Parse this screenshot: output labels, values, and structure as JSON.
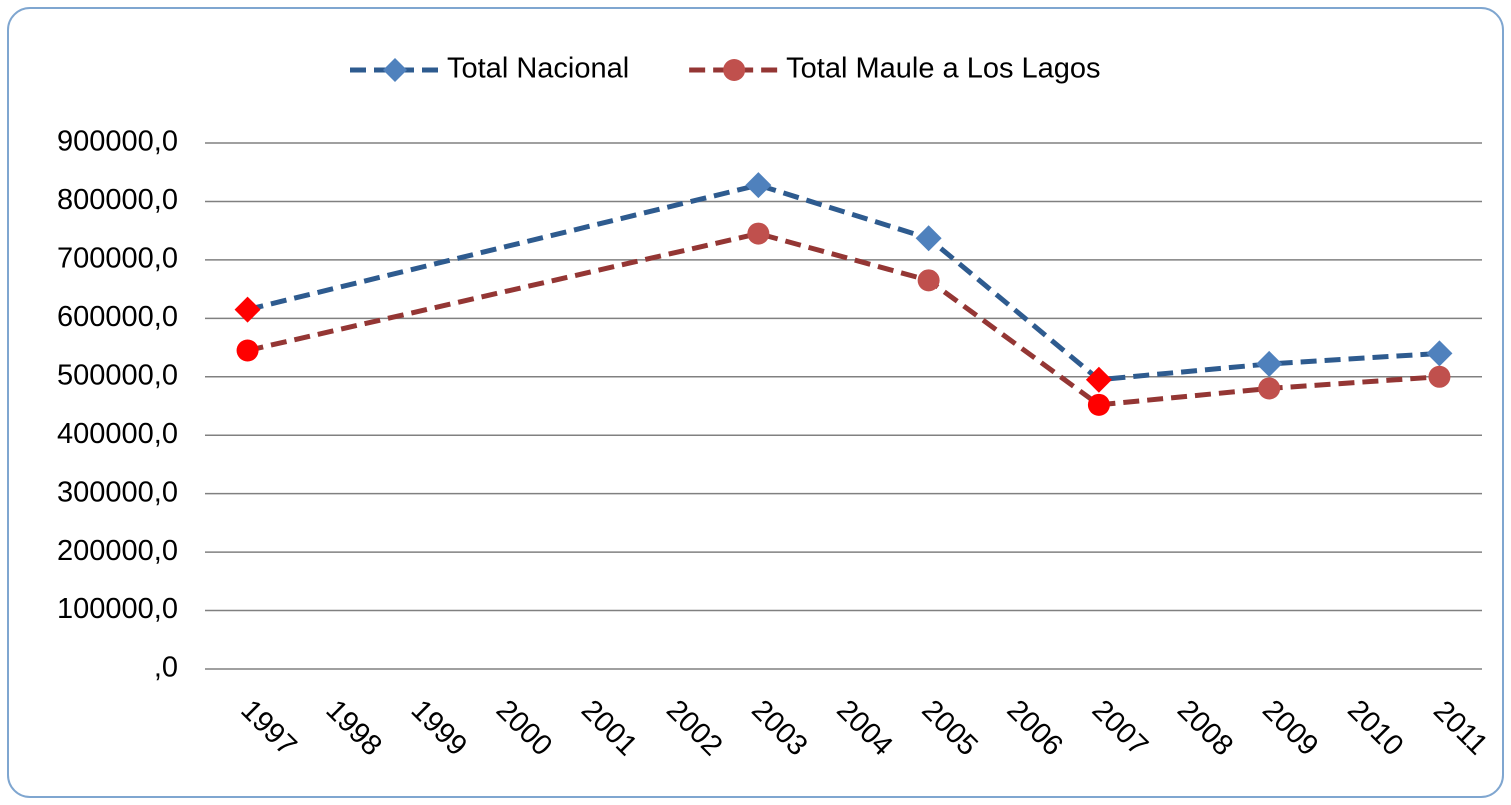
{
  "chart_data": {
    "type": "line",
    "x": [
      1997,
      2003,
      2005,
      2007,
      2009,
      2011
    ],
    "xlim": [
      1996.5,
      2011.5
    ],
    "xticks": [
      1997,
      1998,
      1999,
      2000,
      2001,
      2002,
      2003,
      2004,
      2005,
      2006,
      2007,
      2008,
      2009,
      2010,
      2011
    ],
    "series": [
      {
        "name": "Total Nacional",
        "color": "#4f81bd",
        "line_color": "#2e5b8f",
        "marker": "diamond",
        "values": [
          615000,
          828000,
          737000,
          495000,
          522000,
          540000
        ],
        "marker_colors": [
          "#ff0000",
          "#4f81bd",
          "#4f81bd",
          "#ff0000",
          "#4f81bd",
          "#4f81bd"
        ]
      },
      {
        "name": "Total Maule a Los Lagos",
        "color": "#c0504d",
        "line_color": "#943634",
        "marker": "circle",
        "values": [
          545000,
          745000,
          665000,
          452000,
          480000,
          500000
        ],
        "marker_colors": [
          "#ff0000",
          "#c0504d",
          "#c0504d",
          "#ff0000",
          "#c0504d",
          "#c0504d"
        ]
      }
    ],
    "ylim": [
      0,
      900000
    ],
    "yticks": [
      {
        "value": 0,
        "label": ",0"
      },
      {
        "value": 100000,
        "label": "100000,0"
      },
      {
        "value": 200000,
        "label": "200000,0"
      },
      {
        "value": 300000,
        "label": "300000,0"
      },
      {
        "value": 400000,
        "label": "400000,0"
      },
      {
        "value": 500000,
        "label": "500000,0"
      },
      {
        "value": 600000,
        "label": "600000,0"
      },
      {
        "value": 700000,
        "label": "700000,0"
      },
      {
        "value": 800000,
        "label": "800000,0"
      },
      {
        "value": 900000,
        "label": "900000,0"
      }
    ],
    "grid": true,
    "legend": "top"
  }
}
